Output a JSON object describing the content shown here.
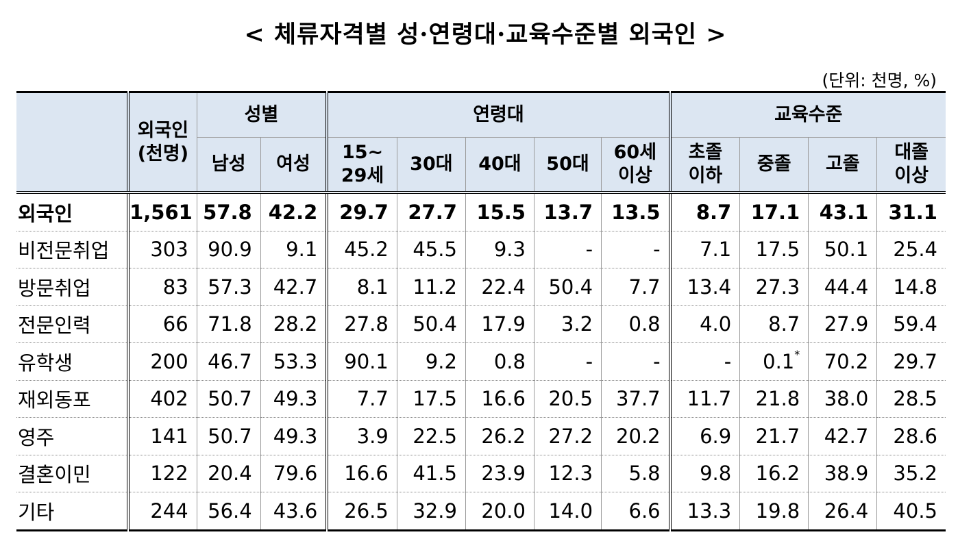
{
  "header": {
    "title": "< 체류자격별 성·연령대·교육수준별 외국인 >",
    "unit": "(단위: 천명, %)"
  },
  "table": {
    "total_header": [
      "외국인",
      "(천명)"
    ],
    "groups": [
      {
        "label": "성별",
        "columns": [
          [
            "남성"
          ],
          [
            "여성"
          ]
        ]
      },
      {
        "label": "연령대",
        "columns": [
          [
            "15~",
            "29세"
          ],
          [
            "30대"
          ],
          [
            "40대"
          ],
          [
            "50대"
          ],
          [
            "60세",
            "이상"
          ]
        ]
      },
      {
        "label": "교육수준",
        "columns": [
          [
            "초졸",
            "이하"
          ],
          [
            "중졸"
          ],
          [
            "고졸"
          ],
          [
            "대졸",
            "이상"
          ]
        ]
      }
    ],
    "rows": [
      {
        "label": "외국인",
        "cells": [
          "1,561",
          "57.8",
          "42.2",
          "29.7",
          "27.7",
          "15.5",
          "13.7",
          "13.5",
          "8.7",
          "17.1",
          "43.1",
          "31.1"
        ]
      },
      {
        "label": "비전문취업",
        "cells": [
          "303",
          "90.9",
          "9.1",
          "45.2",
          "45.5",
          "9.3",
          "-",
          "-",
          "7.1",
          "17.5",
          "50.1",
          "25.4"
        ]
      },
      {
        "label": "방문취업",
        "cells": [
          "83",
          "57.3",
          "42.7",
          "8.1",
          "11.2",
          "22.4",
          "50.4",
          "7.7",
          "13.4",
          "27.3",
          "44.4",
          "14.8"
        ]
      },
      {
        "label": "전문인력",
        "cells": [
          "66",
          "71.8",
          "28.2",
          "27.8",
          "50.4",
          "17.9",
          "3.2",
          "0.8",
          "4.0",
          "8.7",
          "27.9",
          "59.4"
        ]
      },
      {
        "label": "유학생",
        "cells": [
          "200",
          "46.7",
          "53.3",
          "90.1",
          "9.2",
          "0.8",
          "-",
          "-",
          "-",
          {
            "text": "0.1",
            "mark": "*"
          },
          "70.2",
          "29.7"
        ]
      },
      {
        "label": "재외동포",
        "cells": [
          "402",
          "50.7",
          "49.3",
          "7.7",
          "17.5",
          "16.6",
          "20.5",
          "37.7",
          "11.7",
          "21.8",
          "38.0",
          "28.5"
        ]
      },
      {
        "label": "영주",
        "cells": [
          "141",
          "50.7",
          "49.3",
          "3.9",
          "22.5",
          "26.2",
          "27.2",
          "20.2",
          "6.9",
          "21.7",
          "42.7",
          "28.6"
        ]
      },
      {
        "label": "결혼이민",
        "cells": [
          "122",
          "20.4",
          "79.6",
          "16.6",
          "41.5",
          "23.9",
          "12.3",
          "5.8",
          "9.8",
          "16.2",
          "38.9",
          "35.2"
        ]
      },
      {
        "label": "기타",
        "cells": [
          "244",
          "56.4",
          "43.6",
          "26.5",
          "32.9",
          "20.0",
          "14.0",
          "6.6",
          "13.3",
          "19.8",
          "26.4",
          "40.5"
        ]
      }
    ]
  }
}
